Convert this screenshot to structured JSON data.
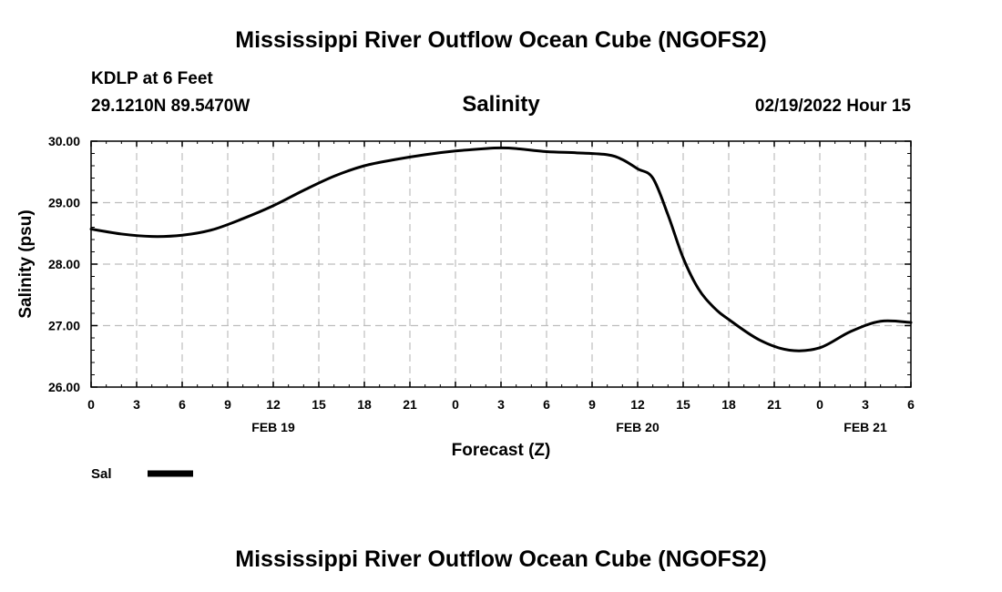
{
  "header": {
    "title": "Mississippi River Outflow Ocean Cube (NGOFS2)",
    "station": "KDLP at 6 Feet",
    "coords": "29.1210N  89.5470W",
    "datetime": "02/19/2022 Hour 15"
  },
  "footer": {
    "title": "Mississippi River Outflow Ocean Cube (NGOFS2)"
  },
  "chart_data": {
    "type": "line",
    "title": "Salinity",
    "xlabel": "Forecast (Z)",
    "ylabel": "Salinity (psu)",
    "ylim": [
      26.0,
      30.0
    ],
    "xlim": [
      0,
      54
    ],
    "y_ticks": [
      "26.00",
      "27.00",
      "28.00",
      "29.00",
      "30.00"
    ],
    "y_tick_values": [
      26,
      27,
      28,
      29,
      30
    ],
    "x_tick_labels": [
      "0",
      "3",
      "6",
      "9",
      "12",
      "15",
      "18",
      "21",
      "0",
      "3",
      "6",
      "9",
      "12",
      "15",
      "18",
      "21",
      "0",
      "3",
      "6"
    ],
    "date_labels": [
      {
        "label": "FEB 19",
        "hour": 12
      },
      {
        "label": "FEB 20",
        "hour": 36
      },
      {
        "label": "FEB 21",
        "hour": 51
      }
    ],
    "grid": true,
    "legend_position": "bottom-left",
    "series": [
      {
        "name": "Sal",
        "color": "#000000",
        "x": [
          0,
          2,
          4,
          6,
          8,
          10,
          12,
          14,
          16,
          18,
          20,
          22,
          24,
          26,
          27,
          28,
          30,
          32,
          34,
          35,
          36,
          37,
          38,
          39,
          40,
          41,
          42,
          44,
          46,
          48,
          50,
          52,
          54
        ],
        "y": [
          28.57,
          28.49,
          28.45,
          28.47,
          28.56,
          28.74,
          28.95,
          29.2,
          29.43,
          29.6,
          29.7,
          29.78,
          29.84,
          29.88,
          29.89,
          29.88,
          29.83,
          29.81,
          29.78,
          29.7,
          29.55,
          29.4,
          28.8,
          28.1,
          27.6,
          27.3,
          27.1,
          26.77,
          26.6,
          26.64,
          26.9,
          27.07,
          27.05
        ]
      }
    ]
  }
}
